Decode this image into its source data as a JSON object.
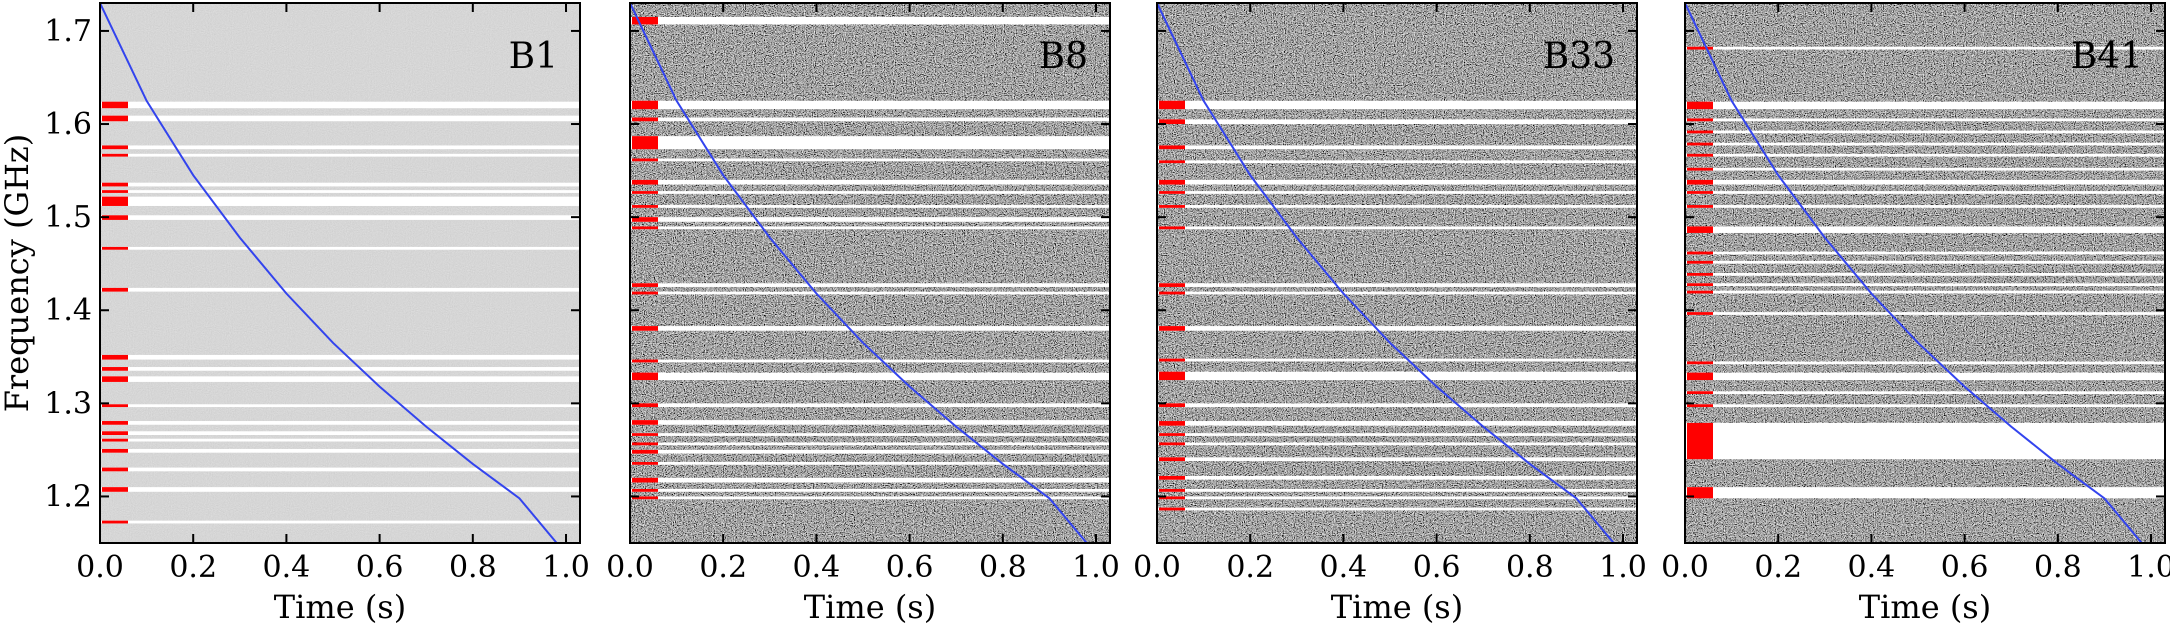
{
  "chart_data": {
    "type": "heatmap",
    "ylabel": "Frequency (GHz)",
    "xlabel": "Time (s)",
    "xlim": [
      0.0,
      1.03
    ],
    "ylim": [
      1.15,
      1.73
    ],
    "xticks": [
      0.0,
      0.2,
      0.4,
      0.6,
      0.8,
      1.0
    ],
    "xtick_labels": [
      "0.0",
      "0.2",
      "0.4",
      "0.6",
      "0.8",
      "1.0"
    ],
    "yticks": [
      1.2,
      1.3,
      1.4,
      1.5,
      1.6,
      1.7
    ],
    "ytick_labels": [
      "1.2",
      "1.3",
      "1.4",
      "1.5",
      "1.6",
      "1.7"
    ],
    "colors": {
      "dispersion_curve": "#3344ee",
      "flag_marks": "#ff0000",
      "masked_channels": "#ffffff"
    },
    "dispersion_curve": {
      "x": [
        0.0,
        0.1,
        0.2,
        0.3,
        0.4,
        0.5,
        0.6,
        0.7,
        0.8,
        0.9,
        0.98
      ],
      "y": [
        1.73,
        1.625,
        1.545,
        1.478,
        1.418,
        1.365,
        1.318,
        1.275,
        1.235,
        1.198,
        1.15
      ]
    },
    "panels": [
      {
        "label": "B1",
        "noise_level": "low",
        "masked_bands": [
          [
            1.617,
            1.624
          ],
          [
            1.603,
            1.609
          ],
          [
            1.573,
            1.577
          ],
          [
            1.565,
            1.568
          ],
          [
            1.533,
            1.537
          ],
          [
            1.526,
            1.529
          ],
          [
            1.512,
            1.522
          ],
          [
            1.497,
            1.502
          ],
          [
            1.465,
            1.468
          ],
          [
            1.42,
            1.424
          ],
          [
            1.347,
            1.352
          ],
          [
            1.335,
            1.339
          ],
          [
            1.323,
            1.329
          ],
          [
            1.296,
            1.299
          ],
          [
            1.277,
            1.281
          ],
          [
            1.266,
            1.27
          ],
          [
            1.259,
            1.262
          ],
          [
            1.247,
            1.251
          ],
          [
            1.227,
            1.231
          ],
          [
            1.205,
            1.21
          ],
          [
            1.171,
            1.174
          ]
        ]
      },
      {
        "label": "B8",
        "noise_level": "high",
        "masked_bands": [
          [
            1.707,
            1.715
          ],
          [
            1.616,
            1.625
          ],
          [
            1.603,
            1.607
          ],
          [
            1.573,
            1.587
          ],
          [
            1.56,
            1.563
          ],
          [
            1.535,
            1.54
          ],
          [
            1.525,
            1.528
          ],
          [
            1.51,
            1.513
          ],
          [
            1.495,
            1.5
          ],
          [
            1.487,
            1.49
          ],
          [
            1.425,
            1.429
          ],
          [
            1.417,
            1.42
          ],
          [
            1.378,
            1.383
          ],
          [
            1.344,
            1.347
          ],
          [
            1.325,
            1.333
          ],
          [
            1.296,
            1.3
          ],
          [
            1.277,
            1.282
          ],
          [
            1.265,
            1.268
          ],
          [
            1.255,
            1.258
          ],
          [
            1.246,
            1.25
          ],
          [
            1.234,
            1.237
          ],
          [
            1.215,
            1.22
          ],
          [
            1.205,
            1.208
          ],
          [
            1.197,
            1.2
          ]
        ]
      },
      {
        "label": "B33",
        "noise_level": "high",
        "masked_bands": [
          [
            1.616,
            1.625
          ],
          [
            1.6,
            1.605
          ],
          [
            1.573,
            1.577
          ],
          [
            1.558,
            1.561
          ],
          [
            1.535,
            1.54
          ],
          [
            1.525,
            1.528
          ],
          [
            1.51,
            1.513
          ],
          [
            1.487,
            1.49
          ],
          [
            1.425,
            1.429
          ],
          [
            1.417,
            1.42
          ],
          [
            1.378,
            1.383
          ],
          [
            1.345,
            1.348
          ],
          [
            1.325,
            1.334
          ],
          [
            1.296,
            1.3
          ],
          [
            1.276,
            1.281
          ],
          [
            1.265,
            1.268
          ],
          [
            1.255,
            1.258
          ],
          [
            1.238,
            1.242
          ],
          [
            1.218,
            1.222
          ],
          [
            1.205,
            1.208
          ],
          [
            1.197,
            1.2
          ],
          [
            1.185,
            1.188
          ]
        ]
      },
      {
        "label": "B41",
        "noise_level": "high",
        "masked_bands": [
          [
            1.68,
            1.683
          ],
          [
            1.616,
            1.624
          ],
          [
            1.603,
            1.606
          ],
          [
            1.59,
            1.593
          ],
          [
            1.577,
            1.58
          ],
          [
            1.565,
            1.568
          ],
          [
            1.55,
            1.553
          ],
          [
            1.535,
            1.54
          ],
          [
            1.525,
            1.528
          ],
          [
            1.51,
            1.513
          ],
          [
            1.483,
            1.49
          ],
          [
            1.46,
            1.463
          ],
          [
            1.45,
            1.453
          ],
          [
            1.437,
            1.44
          ],
          [
            1.426,
            1.429
          ],
          [
            1.418,
            1.421
          ],
          [
            1.395,
            1.398
          ],
          [
            1.342,
            1.345
          ],
          [
            1.325,
            1.333
          ],
          [
            1.31,
            1.313
          ],
          [
            1.296,
            1.299
          ],
          [
            1.24,
            1.279
          ],
          [
            1.198,
            1.21
          ]
        ]
      }
    ]
  }
}
